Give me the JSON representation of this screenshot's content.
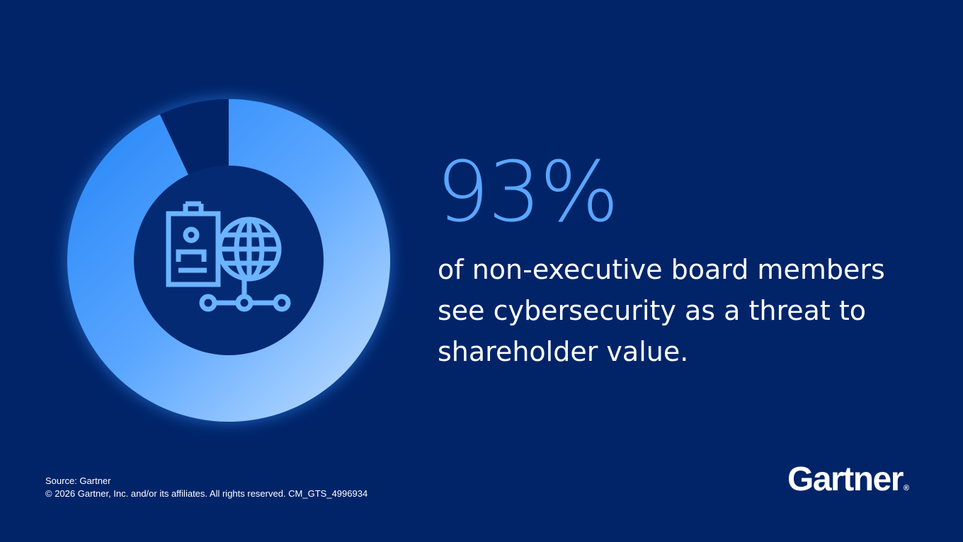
{
  "chart_data": {
    "type": "pie",
    "variant": "donut",
    "values": [
      93,
      7
    ],
    "colors": {
      "highlight": "#3d93f7",
      "remainder": "#012469",
      "center": "#042a73",
      "icon": "#6cb4ff"
    },
    "center_icon": "id-badge-globe-network-icon"
  },
  "stat": {
    "value": "93%",
    "description_lines": [
      "of non-executive board members",
      "see cybersecurity as a threat to",
      "shareholder value."
    ]
  },
  "footer": {
    "source": "Source: Gartner",
    "copyright": "© 2026 Gartner, Inc. and/or its affiliates. All rights reserved. CM_GTS_4996934"
  },
  "logo": {
    "text": "Gartner",
    "mark": "®"
  },
  "colors": {
    "background": "#012469",
    "accent": "#5aa6ff",
    "text": "#ffffff"
  }
}
